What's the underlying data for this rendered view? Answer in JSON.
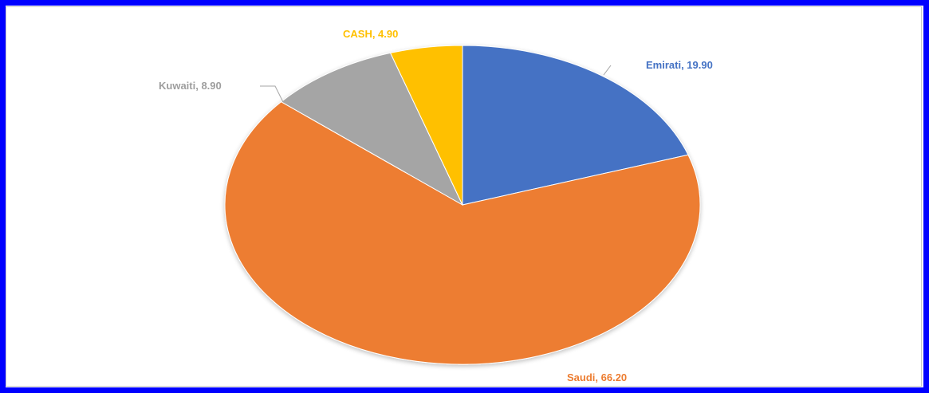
{
  "chart_data": {
    "type": "pie",
    "categories": [
      "Emirati",
      "Saudi",
      "Kuwaiti",
      "CASH"
    ],
    "values": [
      19.9,
      66.2,
      8.9,
      4.9
    ],
    "labels": [
      "Emirati, 19.90",
      "Saudi, 66.20",
      "Kuwaiti, 8.90",
      "CASH, 4.90"
    ],
    "colors": [
      "#4472c4",
      "#ed7d31",
      "#a5a5a5",
      "#ffc000"
    ],
    "title": "",
    "legend": "none",
    "start_angle": "12 o'clock, clockwise"
  }
}
